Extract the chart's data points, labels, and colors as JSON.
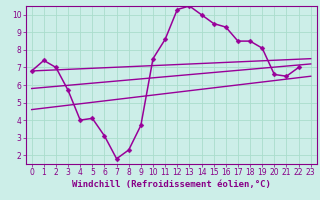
{
  "background_color": "#cceee8",
  "grid_color": "#aaddcc",
  "line_color": "#990099",
  "xlabel": "Windchill (Refroidissement éolien,°C)",
  "xlim": [
    -0.5,
    23.5
  ],
  "ylim": [
    1.5,
    10.5
  ],
  "yticks": [
    2,
    3,
    4,
    5,
    6,
    7,
    8,
    9,
    10
  ],
  "xticks": [
    0,
    1,
    2,
    3,
    4,
    5,
    6,
    7,
    8,
    9,
    10,
    11,
    12,
    13,
    14,
    15,
    16,
    17,
    18,
    19,
    20,
    21,
    22,
    23
  ],
  "series": [
    {
      "x": [
        0,
        1,
        2,
        3,
        4,
        5,
        6,
        7,
        8,
        9,
        10,
        11,
        12,
        13,
        14,
        15,
        16,
        17,
        18,
        19,
        20,
        21,
        22
      ],
      "y": [
        6.8,
        7.4,
        7.0,
        5.7,
        4.0,
        4.1,
        3.1,
        1.8,
        2.3,
        3.7,
        7.5,
        8.6,
        10.3,
        10.5,
        10.0,
        9.5,
        9.3,
        8.5,
        8.5,
        8.1,
        6.6,
        6.5,
        7.0
      ],
      "marker": "D",
      "markersize": 2.5,
      "linewidth": 1.1
    },
    {
      "x": [
        0,
        23
      ],
      "y": [
        6.8,
        7.5
      ],
      "marker": null,
      "linewidth": 1.0
    },
    {
      "x": [
        0,
        23
      ],
      "y": [
        5.8,
        7.2
      ],
      "marker": null,
      "linewidth": 1.0
    },
    {
      "x": [
        0,
        23
      ],
      "y": [
        4.6,
        6.5
      ],
      "marker": null,
      "linewidth": 1.0
    }
  ],
  "tick_fontsize": 5.5,
  "xlabel_fontsize": 6.5,
  "tick_color": "#880088",
  "spine_color": "#880088"
}
